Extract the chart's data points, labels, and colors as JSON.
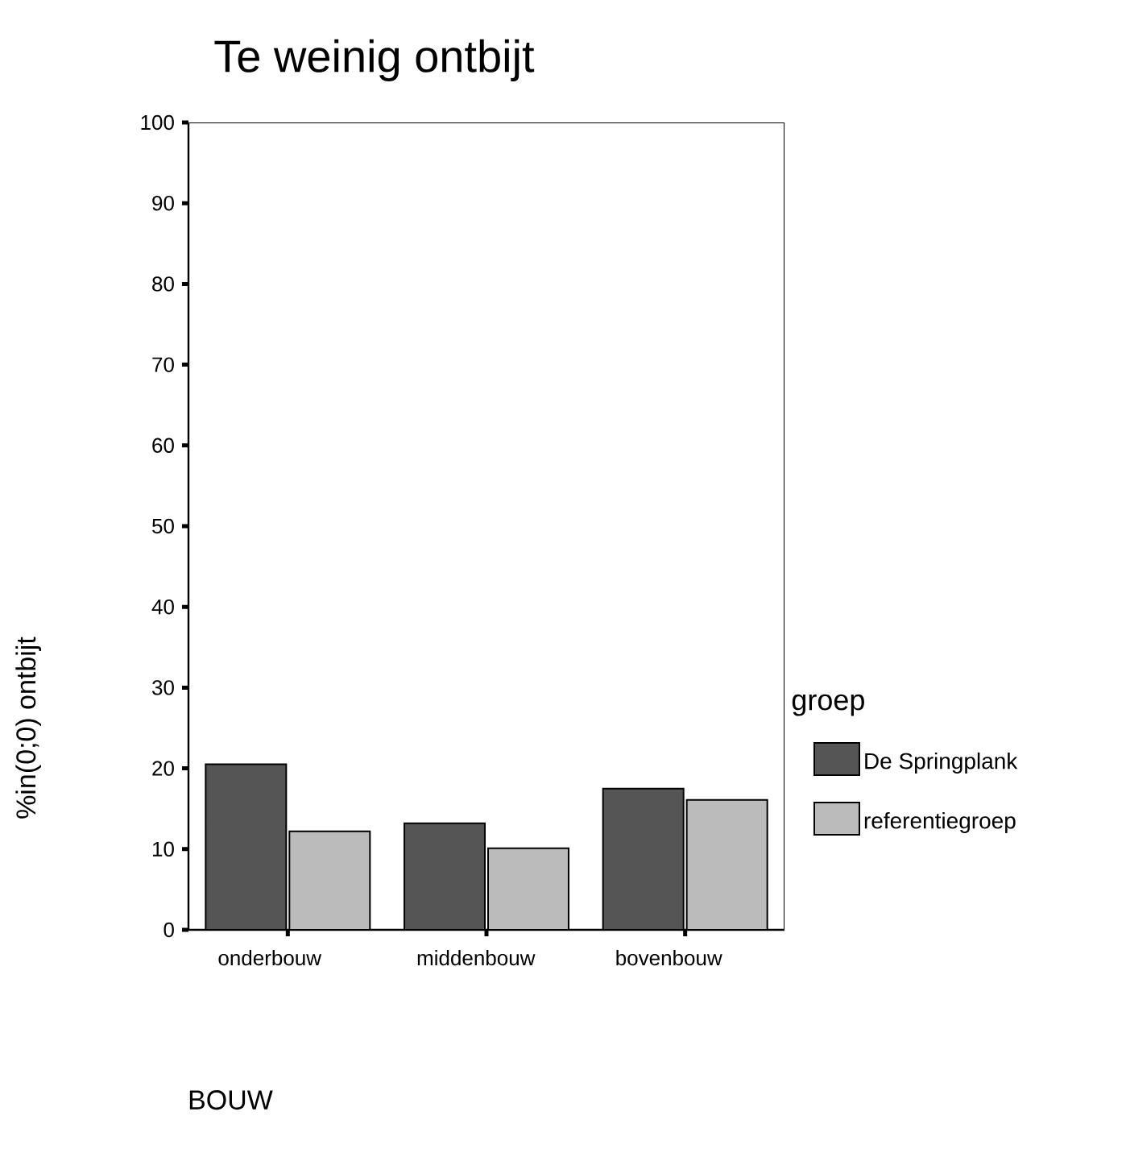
{
  "chart_data": {
    "type": "bar",
    "title": "Te weinig ontbijt",
    "xlabel": "BOUW",
    "ylabel": "%in(0;0) ontbijt",
    "legend_title": "groep",
    "categories": [
      "onderbouw",
      "middenbouw",
      "bovenbouw"
    ],
    "series": [
      {
        "name": "De Springplank",
        "color": "#555555",
        "values": [
          20.5,
          13.2,
          17.5
        ]
      },
      {
        "name": "referentiegroep",
        "color": "#bbbbbb",
        "values": [
          12.2,
          10.1,
          16.1
        ]
      }
    ],
    "ylim": [
      0,
      100
    ],
    "yticks": [
      0,
      10,
      20,
      30,
      40,
      50,
      60,
      70,
      80,
      90,
      100
    ],
    "grid": false,
    "legend": "right"
  }
}
